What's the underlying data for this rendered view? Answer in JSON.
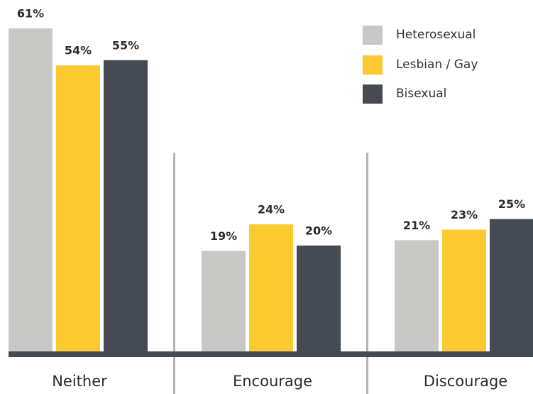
{
  "chart_data": {
    "type": "bar",
    "categories": [
      "Neither",
      "Encourage",
      "Discourage"
    ],
    "series": [
      {
        "name": "Heterosexual",
        "color": "#c8c8c6",
        "values": [
          61,
          19,
          21
        ],
        "value_labels": [
          "61%",
          "19%",
          "21%"
        ]
      },
      {
        "name": "Lesbian / Gay",
        "color": "#fcc931",
        "values": [
          54,
          24,
          23
        ],
        "value_labels": [
          "54%",
          "24%",
          "23%"
        ]
      },
      {
        "name": "Bisexual",
        "color": "#464a52",
        "values": [
          55,
          20,
          25
        ],
        "value_labels": [
          "55%",
          "20%",
          "25%"
        ]
      }
    ],
    "legend": "top-right"
  }
}
